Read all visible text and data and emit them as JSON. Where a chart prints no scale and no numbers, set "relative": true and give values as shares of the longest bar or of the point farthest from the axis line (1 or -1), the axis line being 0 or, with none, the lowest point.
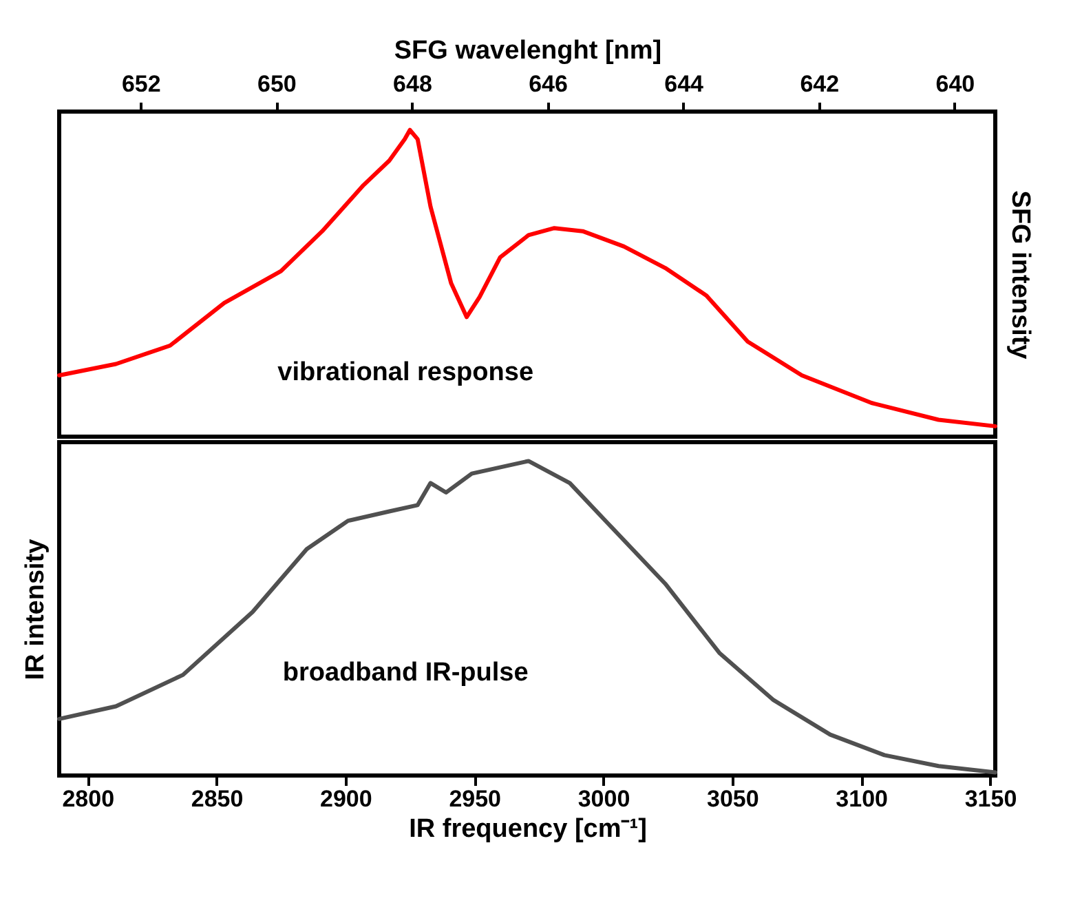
{
  "chart_data": [
    {
      "type": "line",
      "x2label": "SFG wavelenght [nm]",
      "x2lim": [
        653.2,
        639.4
      ],
      "x2ticks": [
        652,
        650,
        648,
        646,
        644,
        642,
        640
      ],
      "xlim": [
        2789,
        3152
      ],
      "y2label": "SFG intensity",
      "relative": true,
      "tick_labels": "x2",
      "annotations": [
        "vibrational response"
      ],
      "series": [
        {
          "color": "#ff0000",
          "x": [
            2789,
            2811,
            2832,
            2853,
            2875,
            2891,
            2907,
            2917,
            2923,
            2925,
            2928,
            2933,
            2941,
            2947,
            2952,
            2960,
            2971,
            2981,
            2992,
            3008,
            3024,
            3040,
            3056,
            3077,
            3104,
            3130,
            3152
          ],
          "values": [
            0.2,
            0.237,
            0.297,
            0.436,
            0.54,
            0.67,
            0.82,
            0.9,
            0.97,
            1,
            0.97,
            0.75,
            0.5,
            0.39,
            0.455,
            0.585,
            0.657,
            0.68,
            0.67,
            0.62,
            0.55,
            0.46,
            0.31,
            0.2,
            0.11,
            0.055,
            0.034
          ]
        }
      ]
    },
    {
      "type": "line",
      "xlabel": "IR frequency [cm⁻¹]",
      "xlim": [
        2789,
        3152
      ],
      "xticks": [
        2800,
        2850,
        2900,
        2950,
        3000,
        3050,
        3100,
        3150
      ],
      "ylabel": "IR intensity",
      "relative": true,
      "tick_labels": "x",
      "annotations": [
        "broadband  IR-pulse"
      ],
      "series": [
        {
          "color": "#505050",
          "x": [
            2789,
            2811,
            2837,
            2864,
            2885,
            2901,
            2917,
            2928,
            2933,
            2939,
            2949,
            2971,
            2987,
            3002,
            3024,
            3045,
            3066,
            3088,
            3109,
            3130,
            3152
          ],
          "values": [
            0.18,
            0.22,
            0.32,
            0.52,
            0.72,
            0.81,
            0.84,
            0.86,
            0.93,
            0.9,
            0.96,
            1,
            0.93,
            0.8,
            0.61,
            0.39,
            0.24,
            0.13,
            0.065,
            0.03,
            0.01
          ]
        }
      ]
    }
  ]
}
